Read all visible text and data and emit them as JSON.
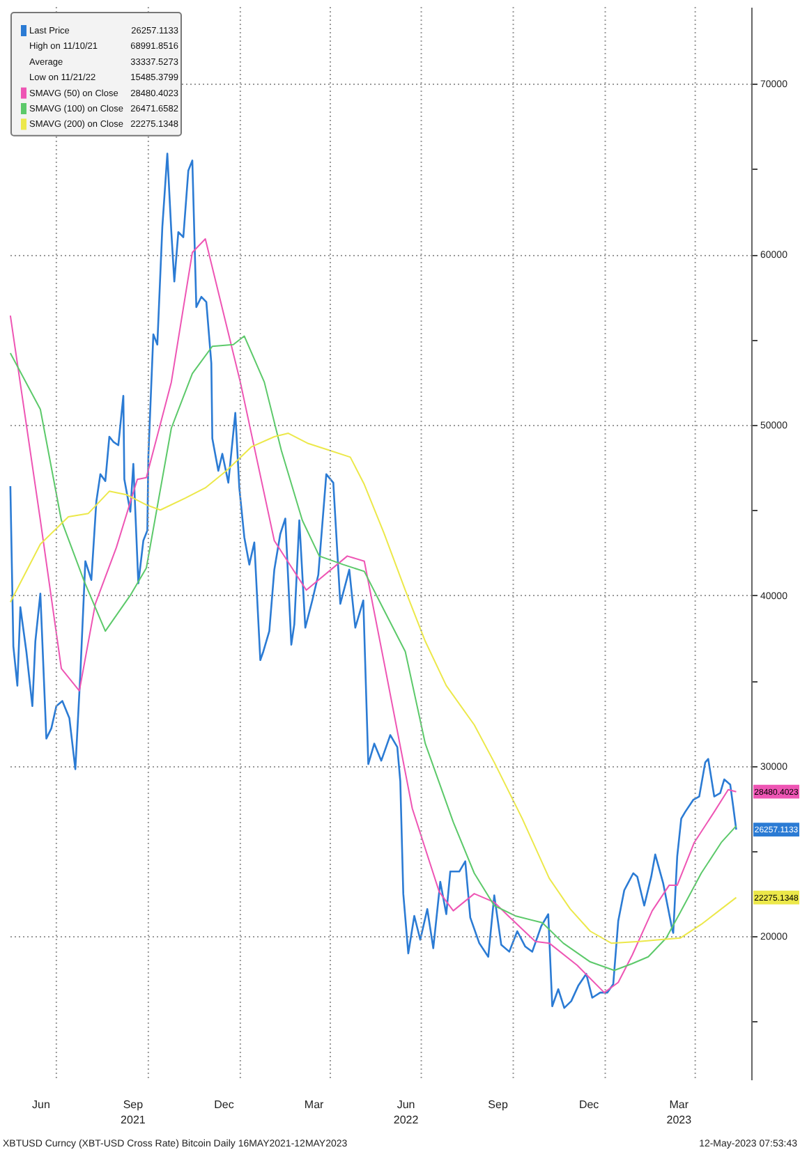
{
  "chart_data": {
    "type": "line",
    "legend": "top left",
    "grid": true,
    "xlim": [
      "2021-05-14",
      "2023-05-27"
    ],
    "xticks": [
      {
        "value": "2021-06-15",
        "label": "Jun"
      },
      {
        "value": "2021-07-01",
        "label": null
      },
      {
        "value": "2021-09-15",
        "label": "Sep\n2021"
      },
      {
        "value": "2021-10-01",
        "label": null
      },
      {
        "value": "2021-12-15",
        "label": "Dec"
      },
      {
        "value": "2022-01-01",
        "label": null
      },
      {
        "value": "2022-03-15",
        "label": "Mar"
      },
      {
        "value": "2022-04-01",
        "label": null
      },
      {
        "value": "2022-06-15",
        "label": "Jun\n2022"
      },
      {
        "value": "2022-07-01",
        "label": null
      },
      {
        "value": "2022-09-15",
        "label": "Sep"
      },
      {
        "value": "2022-10-01",
        "label": null
      },
      {
        "value": "2022-12-15",
        "label": "Dec"
      },
      {
        "value": "2023-01-01",
        "label": null
      },
      {
        "value": "2023-03-15",
        "label": "Mar\n2023"
      },
      {
        "value": "2023-04-01",
        "label": null
      }
    ],
    "ylim": [
      11600,
      74500
    ],
    "yticks": [
      {
        "value": 15000,
        "label": null
      },
      20000,
      {
        "value": 25000,
        "label": null
      },
      30000,
      {
        "value": 35000,
        "label": null
      },
      40000,
      {
        "value": 45000,
        "label": null
      },
      50000,
      {
        "value": 55000,
        "label": null
      },
      60000,
      {
        "value": 65000,
        "label": null
      },
      70000
    ],
    "series": [
      {
        "name": "Last Price",
        "color": "#2b7bd4",
        "x": [
          "2021-05-16",
          "2021-05-19",
          "2021-05-23",
          "2021-05-26",
          "2021-06-01",
          "2021-06-07",
          "2021-06-10",
          "2021-06-15",
          "2021-06-21",
          "2021-06-26",
          "2021-07-01",
          "2021-07-07",
          "2021-07-14",
          "2021-07-20",
          "2021-07-25",
          "2021-07-30",
          "2021-08-05",
          "2021-08-10",
          "2021-08-14",
          "2021-08-19",
          "2021-08-23",
          "2021-08-27",
          "2021-09-01",
          "2021-09-06",
          "2021-09-07",
          "2021-09-13",
          "2021-09-16",
          "2021-09-21",
          "2021-09-26",
          "2021-09-30",
          "2021-10-01",
          "2021-10-06",
          "2021-10-10",
          "2021-10-15",
          "2021-10-20",
          "2021-10-24",
          "2021-10-27",
          "2021-10-31",
          "2021-11-05",
          "2021-11-10",
          "2021-11-14",
          "2021-11-18",
          "2021-11-23",
          "2021-11-28",
          "2021-12-03",
          "2021-12-04",
          "2021-12-10",
          "2021-12-14",
          "2021-12-20",
          "2021-12-27",
          "2021-12-31",
          "2022-01-05",
          "2022-01-10",
          "2022-01-15",
          "2022-01-21",
          "2022-01-24",
          "2022-01-30",
          "2022-02-04",
          "2022-02-10",
          "2022-02-15",
          "2022-02-21",
          "2022-02-24",
          "2022-03-01",
          "2022-03-07",
          "2022-03-14",
          "2022-03-20",
          "2022-03-28",
          "2022-04-04",
          "2022-04-11",
          "2022-04-20",
          "2022-04-26",
          "2022-05-04",
          "2022-05-09",
          "2022-05-15",
          "2022-05-22",
          "2022-05-31",
          "2022-06-07",
          "2022-06-10",
          "2022-06-13",
          "2022-06-18",
          "2022-06-24",
          "2022-06-30",
          "2022-07-07",
          "2022-07-13",
          "2022-07-20",
          "2022-07-26",
          "2022-07-30",
          "2022-08-08",
          "2022-08-14",
          "2022-08-19",
          "2022-08-28",
          "2022-09-06",
          "2022-09-12",
          "2022-09-19",
          "2022-09-27",
          "2022-10-05",
          "2022-10-13",
          "2022-10-20",
          "2022-10-29",
          "2022-11-05",
          "2022-11-09",
          "2022-11-15",
          "2022-11-21",
          "2022-11-28",
          "2022-12-05",
          "2022-12-13",
          "2022-12-19",
          "2022-12-27",
          "2023-01-03",
          "2023-01-09",
          "2023-01-14",
          "2023-01-20",
          "2023-01-29",
          "2023-02-02",
          "2023-02-09",
          "2023-02-16",
          "2023-02-20",
          "2023-02-28",
          "2023-03-09",
          "2023-03-10",
          "2023-03-14",
          "2023-03-18",
          "2023-03-22",
          "2023-03-30",
          "2023-04-05",
          "2023-04-11",
          "2023-04-14",
          "2023-04-20",
          "2023-04-26",
          "2023-04-30",
          "2023-05-06",
          "2023-05-09",
          "2023-05-12"
        ],
        "values": [
          46400,
          37000,
          34700,
          39300,
          36700,
          33500,
          37300,
          40100,
          31600,
          32200,
          33500,
          33800,
          32800,
          29800,
          35400,
          42000,
          40900,
          45500,
          47100,
          46700,
          49300,
          49000,
          48800,
          51700,
          46800,
          44900,
          47700,
          40700,
          43200,
          43800,
          48100,
          55300,
          54700,
          61600,
          65900,
          61300,
          58400,
          61300,
          61000,
          64900,
          65500,
          56900,
          57500,
          57200,
          53600,
          49200,
          47300,
          48300,
          46600,
          50700,
          46300,
          43400,
          41800,
          43100,
          36200,
          36700,
          37900,
          41500,
          43600,
          44500,
          37100,
          38300,
          44400,
          38100,
          39700,
          41200,
          47100,
          46600,
          39500,
          41500,
          38100,
          39700,
          30100,
          31300,
          30300,
          31800,
          31100,
          29100,
          22500,
          19000,
          21200,
          19800,
          21600,
          19300,
          23200,
          21300,
          23800,
          23800,
          24400,
          21100,
          19600,
          18800,
          22400,
          19500,
          19100,
          20300,
          19400,
          19100,
          20600,
          21300,
          15900,
          16900,
          15800,
          16200,
          17100,
          17800,
          16400,
          16700,
          16700,
          17200,
          20900,
          22700,
          23700,
          23500,
          21800,
          23500,
          24800,
          23100,
          20400,
          20200,
          24700,
          26900,
          27300,
          28000,
          28200,
          30200,
          30400,
          28200,
          28400,
          29200,
          28900,
          27600,
          26257.1133
        ],
        "value_labels": [
          null,
          null,
          null,
          null,
          null,
          null,
          null,
          null,
          null,
          null,
          null,
          null,
          null,
          null,
          null,
          null,
          null,
          null,
          null,
          null,
          null,
          null,
          null,
          null,
          null,
          null,
          null,
          null,
          null,
          null,
          null,
          null,
          null,
          null,
          null,
          null,
          null,
          null,
          null,
          null,
          null,
          null,
          null,
          null,
          null,
          null,
          null,
          null,
          null,
          null,
          null,
          null,
          null,
          null,
          null,
          null,
          null,
          null,
          null,
          null,
          null,
          null,
          null,
          null,
          null,
          null,
          null,
          null,
          null,
          null,
          null,
          null,
          null,
          null,
          null,
          null,
          null,
          null,
          null,
          null,
          null,
          null,
          null,
          null,
          null,
          null,
          null,
          null,
          null,
          null,
          null,
          null,
          null,
          null,
          null,
          null,
          null,
          null,
          null,
          null,
          null,
          null,
          null,
          null,
          null,
          null,
          null,
          null,
          null,
          null,
          null,
          null,
          null,
          null,
          null,
          null,
          null,
          null,
          null,
          null,
          null,
          null,
          null,
          null,
          null,
          null,
          null,
          null,
          null,
          null,
          null,
          null,
          null
        ]
      },
      {
        "name": "SMAVG (50) on Close",
        "color": "#ee55b4",
        "x": [
          "2021-05-16",
          "2021-06-15",
          "2021-07-06",
          "2021-07-24",
          "2021-08-09",
          "2021-08-30",
          "2021-09-20",
          "2021-09-29",
          "2021-10-24",
          "2021-11-14",
          "2021-11-27",
          "2022-01-01",
          "2022-02-04",
          "2022-03-08",
          "2022-04-18",
          "2022-05-05",
          "2022-05-25",
          "2022-06-22",
          "2022-07-19",
          "2022-08-02",
          "2022-08-23",
          "2022-09-12",
          "2022-09-26",
          "2022-10-23",
          "2022-11-06",
          "2022-12-04",
          "2022-12-31",
          "2023-01-14",
          "2023-01-28",
          "2023-02-17",
          "2023-03-06",
          "2023-03-14",
          "2023-03-31",
          "2023-04-20",
          "2023-05-04",
          "2023-05-12"
        ],
        "values": [
          56400,
          44400,
          35700,
          34400,
          39500,
          42800,
          46800,
          46900,
          52500,
          60100,
          60900,
          52500,
          43200,
          40300,
          42300,
          42000,
          36000,
          27500,
          22600,
          21500,
          22500,
          22000,
          21200,
          19700,
          19600,
          18300,
          16700,
          17300,
          18900,
          21500,
          23000,
          23000,
          25500,
          27300,
          28600,
          28480.4023
        ],
        "value_labels": [
          null,
          null,
          null,
          null,
          null,
          null,
          null,
          null,
          null,
          null,
          null,
          null,
          null,
          null,
          null,
          null,
          null,
          null,
          null,
          null,
          null,
          null,
          null,
          null,
          null,
          null,
          null,
          null,
          null,
          null,
          null,
          null,
          null,
          null,
          null,
          null
        ]
      },
      {
        "name": "SMAVG (100) on Close",
        "color": "#5cc96a",
        "x": [
          "2021-05-16",
          "2021-06-15",
          "2021-07-06",
          "2021-07-29",
          "2021-08-19",
          "2021-09-13",
          "2021-09-29",
          "2021-10-24",
          "2021-11-14",
          "2021-12-04",
          "2021-12-25",
          "2022-01-05",
          "2022-01-25",
          "2022-02-11",
          "2022-03-04",
          "2022-03-21",
          "2022-04-14",
          "2022-05-05",
          "2022-05-25",
          "2022-06-15",
          "2022-07-05",
          "2022-08-02",
          "2022-08-23",
          "2022-09-12",
          "2022-10-03",
          "2022-10-30",
          "2022-11-20",
          "2022-12-17",
          "2023-01-10",
          "2023-01-28",
          "2023-02-13",
          "2023-03-03",
          "2023-03-17",
          "2023-04-07",
          "2023-04-27",
          "2023-05-12"
        ],
        "values": [
          54200,
          50900,
          44400,
          40800,
          37900,
          40000,
          41600,
          49800,
          53000,
          54600,
          54700,
          55200,
          52500,
          48500,
          44400,
          42300,
          41800,
          41400,
          39100,
          36700,
          31300,
          26700,
          23700,
          21800,
          21200,
          20800,
          19600,
          18500,
          18000,
          18400,
          18800,
          19900,
          21400,
          23700,
          25500,
          26471.6582
        ]
      },
      {
        "name": "SMAVG (200) on Close",
        "color": "#ece84a",
        "x": [
          "2021-05-16",
          "2021-06-15",
          "2021-07-13",
          "2021-08-02",
          "2021-08-23",
          "2021-09-09",
          "2021-09-29",
          "2021-10-13",
          "2021-11-07",
          "2021-11-27",
          "2021-12-18",
          "2022-01-12",
          "2022-02-04",
          "2022-02-18",
          "2022-03-10",
          "2022-03-31",
          "2022-04-21",
          "2022-05-05",
          "2022-05-25",
          "2022-06-15",
          "2022-07-05",
          "2022-07-26",
          "2022-08-23",
          "2022-09-12",
          "2022-10-10",
          "2022-11-06",
          "2022-11-27",
          "2022-12-17",
          "2023-01-07",
          "2023-02-04",
          "2023-02-24",
          "2023-03-17",
          "2023-04-07",
          "2023-04-27",
          "2023-05-12"
        ],
        "values": [
          39600,
          43000,
          44600,
          44800,
          46100,
          45900,
          45300,
          45000,
          45700,
          46300,
          47300,
          48700,
          49300,
          49500,
          48900,
          48500,
          48100,
          46500,
          43600,
          40300,
          37300,
          34700,
          32400,
          30200,
          26900,
          23400,
          21600,
          20300,
          19600,
          19700,
          19800,
          19900,
          20700,
          21600,
          22275.1348
        ],
        "value_labels": [
          null,
          null,
          null,
          null,
          null,
          null,
          null,
          null,
          null,
          null,
          null,
          null,
          null,
          null,
          null,
          null,
          null,
          null,
          null,
          null,
          null,
          null,
          null,
          null,
          null,
          null,
          null,
          null,
          null,
          null,
          null,
          null,
          null,
          null,
          null
        ]
      }
    ],
    "annotations": [
      "26257.1133",
      "High on 11/10/21",
      "68991.8516",
      "Average",
      "33337.5273",
      "Low on 11/21/22",
      "15485.3799",
      "28480.4023",
      "26471.6582",
      "22275.1348",
      {
        "text": "28480.4023",
        "x": "2023-05-12",
        "y": 28480.4023
      },
      {
        "text": "26257.1133",
        "x": "2023-05-12",
        "y": 26257.1133
      },
      {
        "text": "22275.1348",
        "x": "2023-05-12",
        "y": 22275.1348
      },
      "XBTUSD Curncy (XBT-USD Cross Rate) Bitcoin  Daily 16MAY2021-12MAY2023",
      "12-May-2023 07:53:43"
    ]
  }
}
